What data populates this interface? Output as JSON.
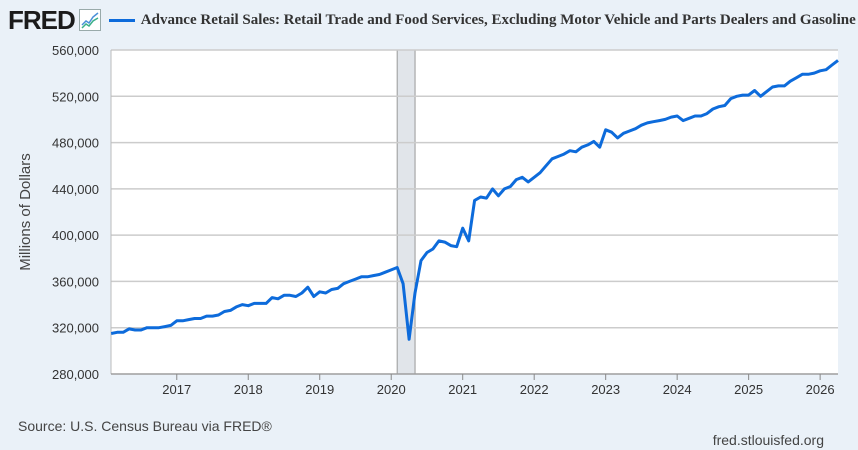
{
  "header": {
    "logo": "FRED",
    "series_title": "Advance Retail Sales: Retail Trade and Food Services, Excluding Motor Vehicle and Parts Dealers and Gasoline Statio"
  },
  "footer": {
    "source": "Source: U.S. Census Bureau via FRED®",
    "site": "fred.stlouisfed.org"
  },
  "colors": {
    "line": "#0d6bdb",
    "recession": "#e1e5ea",
    "grid": "#cccccc"
  },
  "chart_data": {
    "type": "line",
    "title": "Advance Retail Sales: Retail Trade and Food Services, Excluding Motor Vehicle and Parts Dealers and Gasoline Stations",
    "xlabel": "",
    "ylabel": "Millions of Dollars",
    "ylim": [
      280000,
      560000
    ],
    "xlim": [
      2016.08,
      2026.25
    ],
    "yticks": [
      "280,000",
      "320,000",
      "360,000",
      "400,000",
      "440,000",
      "480,000",
      "520,000",
      "560,000"
    ],
    "ytick_values": [
      280000,
      320000,
      360000,
      400000,
      440000,
      480000,
      520000,
      560000
    ],
    "xticks": [
      "2017",
      "2018",
      "2019",
      "2020",
      "2021",
      "2022",
      "2023",
      "2024",
      "2025",
      "2026"
    ],
    "grid": true,
    "recession": {
      "start": "2020-02",
      "end": "2020-04"
    },
    "series": [
      {
        "name": "Advance Retail Sales excl. Motor Vehicle and Gasoline",
        "start": "2016-02",
        "frequency": "monthly",
        "values_thousands": [
          315,
          316,
          316,
          319,
          318,
          318,
          320,
          320,
          320,
          321,
          322,
          326,
          326,
          327,
          328,
          328,
          330,
          330,
          331,
          334,
          335,
          338,
          340,
          339,
          341,
          341,
          341,
          346,
          345,
          348,
          348,
          347,
          350,
          355,
          347,
          351,
          350,
          353,
          354,
          358,
          360,
          362,
          364,
          364,
          365,
          366,
          368,
          370,
          372,
          358,
          310,
          350,
          378,
          385,
          388,
          395,
          394,
          391,
          390,
          406,
          395,
          430,
          433,
          432,
          440,
          434,
          440,
          442,
          448,
          450,
          446,
          450,
          454,
          460,
          466,
          468,
          470,
          473,
          472,
          476,
          478,
          481,
          476,
          491,
          489,
          484,
          488,
          490,
          492,
          495,
          497,
          498,
          499,
          500,
          502,
          503,
          499,
          501,
          503,
          503,
          505,
          509,
          511,
          512,
          518,
          520,
          521,
          521,
          525,
          520,
          524,
          528,
          529,
          529,
          533,
          536,
          539,
          539,
          540,
          542,
          543,
          547,
          551
        ]
      }
    ]
  }
}
